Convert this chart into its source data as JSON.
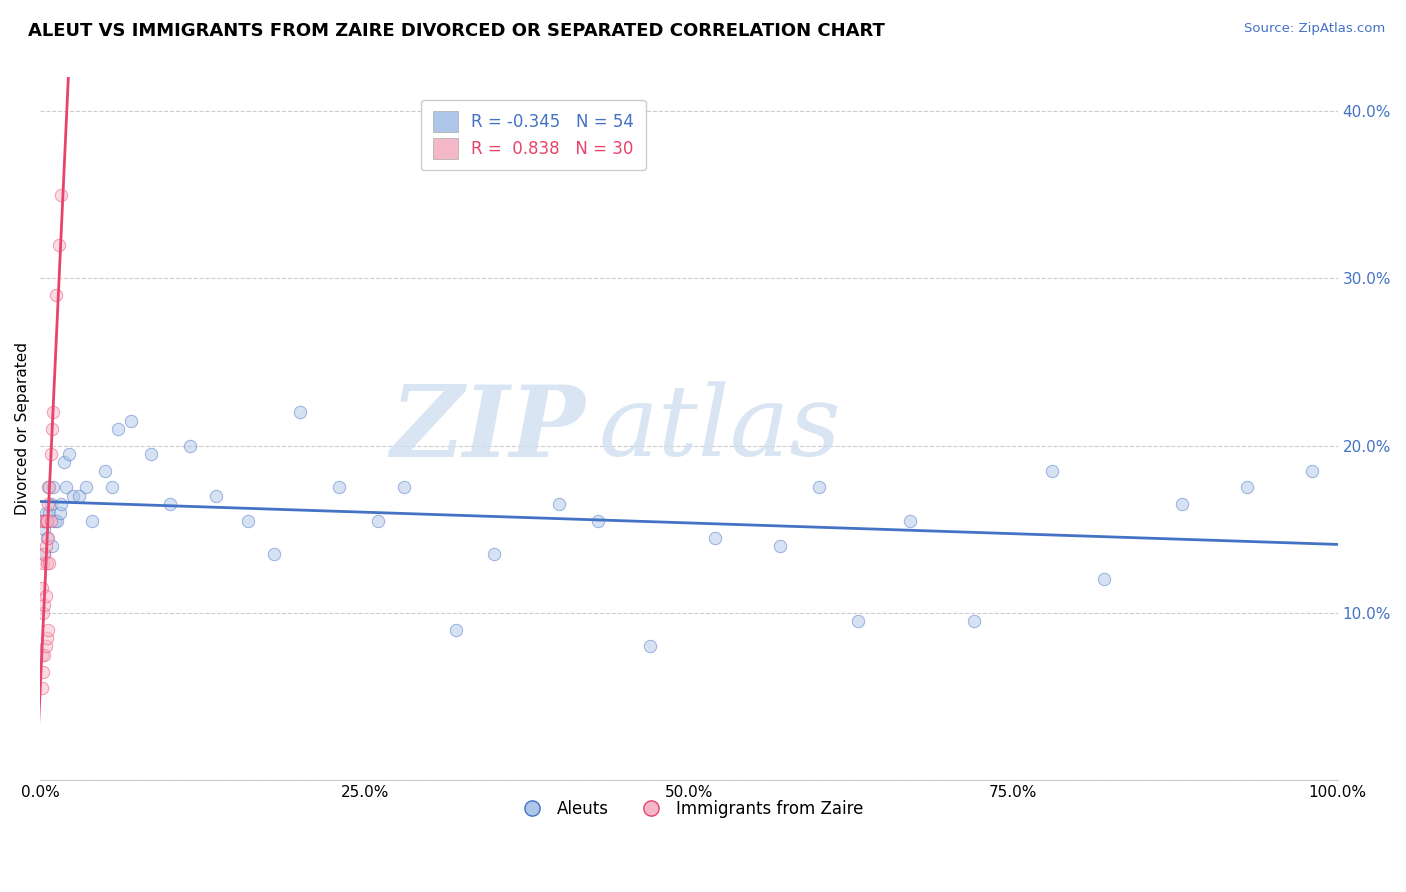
{
  "title": "ALEUT VS IMMIGRANTS FROM ZAIRE DIVORCED OR SEPARATED CORRELATION CHART",
  "source_text": "Source: ZipAtlas.com",
  "ylabel": "Divorced or Separated",
  "legend_labels": [
    "Aleuts",
    "Immigrants from Zaire"
  ],
  "r_aleut": -0.345,
  "n_aleut": 54,
  "r_zaire": 0.838,
  "n_zaire": 30,
  "aleut_color": "#aec6e8",
  "zaire_color": "#f5b8c8",
  "aleut_line_color": "#4472c4",
  "zaire_line_color": "#e8436a",
  "aleut_x": [
    0.002,
    0.003,
    0.003,
    0.004,
    0.004,
    0.005,
    0.005,
    0.006,
    0.006,
    0.007,
    0.008,
    0.009,
    0.01,
    0.011,
    0.013,
    0.015,
    0.016,
    0.018,
    0.02,
    0.022,
    0.025,
    0.03,
    0.035,
    0.04,
    0.05,
    0.055,
    0.06,
    0.07,
    0.085,
    0.1,
    0.115,
    0.135,
    0.16,
    0.18,
    0.2,
    0.23,
    0.26,
    0.28,
    0.32,
    0.35,
    0.4,
    0.43,
    0.47,
    0.52,
    0.57,
    0.6,
    0.63,
    0.67,
    0.72,
    0.78,
    0.82,
    0.88,
    0.93,
    0.98
  ],
  "aleut_y": [
    0.155,
    0.15,
    0.135,
    0.16,
    0.155,
    0.145,
    0.155,
    0.175,
    0.155,
    0.16,
    0.165,
    0.14,
    0.175,
    0.155,
    0.155,
    0.16,
    0.165,
    0.19,
    0.175,
    0.195,
    0.17,
    0.17,
    0.175,
    0.155,
    0.185,
    0.175,
    0.21,
    0.215,
    0.195,
    0.165,
    0.2,
    0.17,
    0.155,
    0.135,
    0.22,
    0.175,
    0.155,
    0.175,
    0.09,
    0.135,
    0.165,
    0.155,
    0.08,
    0.145,
    0.14,
    0.175,
    0.095,
    0.155,
    0.095,
    0.185,
    0.12,
    0.165,
    0.175,
    0.185
  ],
  "zaire_x": [
    0.001,
    0.001,
    0.001,
    0.002,
    0.002,
    0.002,
    0.002,
    0.003,
    0.003,
    0.003,
    0.003,
    0.004,
    0.004,
    0.004,
    0.004,
    0.005,
    0.005,
    0.005,
    0.006,
    0.006,
    0.006,
    0.007,
    0.007,
    0.008,
    0.008,
    0.009,
    0.01,
    0.012,
    0.014,
    0.016
  ],
  "zaire_y": [
    0.055,
    0.075,
    0.115,
    0.065,
    0.1,
    0.13,
    0.155,
    0.075,
    0.105,
    0.135,
    0.155,
    0.08,
    0.11,
    0.14,
    0.155,
    0.085,
    0.13,
    0.155,
    0.09,
    0.145,
    0.165,
    0.13,
    0.175,
    0.155,
    0.195,
    0.21,
    0.22,
    0.29,
    0.32,
    0.35
  ],
  "xlim": [
    0.0,
    1.0
  ],
  "ylim": [
    0.0,
    0.42
  ],
  "xticks": [
    0.0,
    0.25,
    0.5,
    0.75,
    1.0
  ],
  "xticklabels": [
    "0.0%",
    "25.0%",
    "50.0%",
    "75.0%",
    "100.0%"
  ],
  "yticks_left": [
    0.0,
    0.1,
    0.2,
    0.3,
    0.4
  ],
  "yticklabels_left": [
    "",
    "",
    "",
    "",
    ""
  ],
  "yticks_right": [
    0.1,
    0.2,
    0.3,
    0.4
  ],
  "yticklabels_right": [
    "10.0%",
    "20.0%",
    "30.0%",
    "40.0%"
  ],
  "background_color": "#ffffff",
  "grid_color": "#cccccc",
  "title_fontsize": 13,
  "axis_label_fontsize": 11,
  "tick_fontsize": 11,
  "legend_fontsize": 12,
  "marker_size": 80,
  "marker_alpha": 0.5,
  "line_width": 2.0,
  "zaire_line_xrange": [
    -0.005,
    0.025
  ],
  "zaire_dashed_xrange": [
    0.025,
    0.43
  ]
}
